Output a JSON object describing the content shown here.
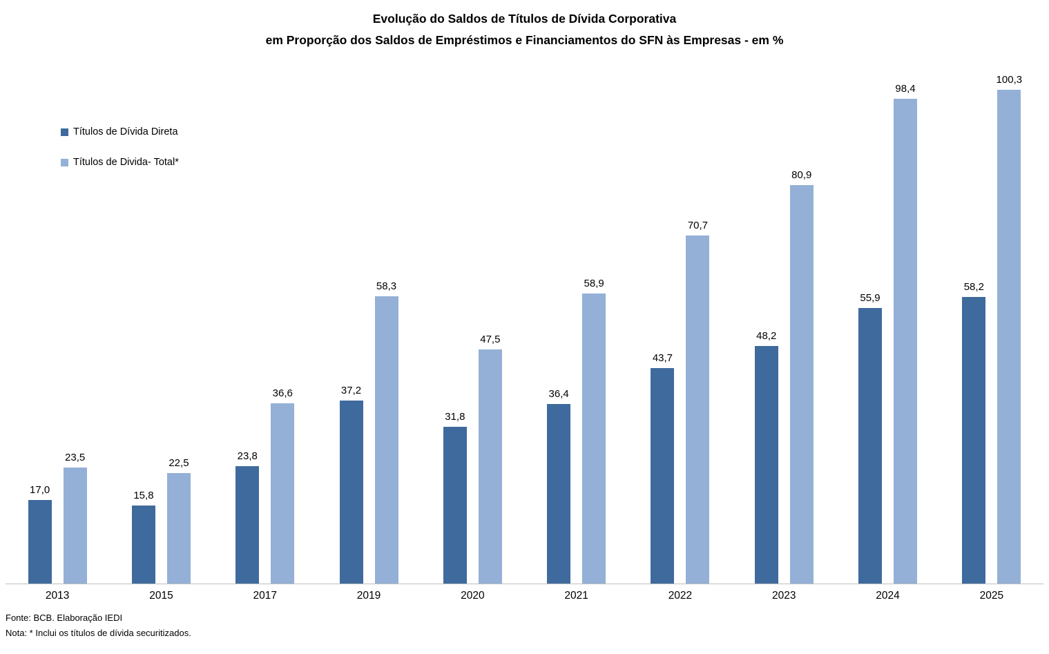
{
  "title": {
    "line1": "Evolução do Saldos de Títulos de Dívida Corporativa",
    "line2": "em Proporção dos Saldos de Empréstimos e Financiamentos do SFN às Empresas -  em %"
  },
  "legend": [
    {
      "label": "Títulos de Dívida Direta",
      "color": "#3f6a9d"
    },
    {
      "label": "Títulos de Divida- Total*",
      "color": "#94b0d6"
    }
  ],
  "footer": {
    "fonte": "Fonte: BCB. Elaboração IEDI",
    "nota": "Nota: * Inclui os títulos de dívida securitizados."
  },
  "chart_data": {
    "type": "bar",
    "title": "Evolução do Saldos de Títulos de Dívida Corporativa em Proporção dos Saldos de Empréstimos e Financiamentos do SFN às Empresas - em %",
    "categories": [
      "2013",
      "2015",
      "2017",
      "2019",
      "2020",
      "2021",
      "2022",
      "2023",
      "2024",
      "2025"
    ],
    "series": [
      {
        "name": "Títulos de Dívida Direta",
        "color": "#3f6a9d",
        "values": [
          17.0,
          15.8,
          23.8,
          37.2,
          31.8,
          36.4,
          43.7,
          48.2,
          55.9,
          58.2
        ]
      },
      {
        "name": "Títulos de Divida- Total*",
        "color": "#94b0d6",
        "values": [
          23.5,
          22.5,
          36.6,
          58.3,
          47.5,
          58.9,
          70.7,
          80.9,
          98.4,
          100.3
        ]
      }
    ],
    "value_label_format": "decimal-comma-1",
    "xlabel": "",
    "ylabel": "",
    "ylim": [
      0,
      105
    ],
    "grid": false,
    "y_axis_visible": false,
    "legend_position": "top-left",
    "axis_line_color": "#bfbfbf"
  }
}
